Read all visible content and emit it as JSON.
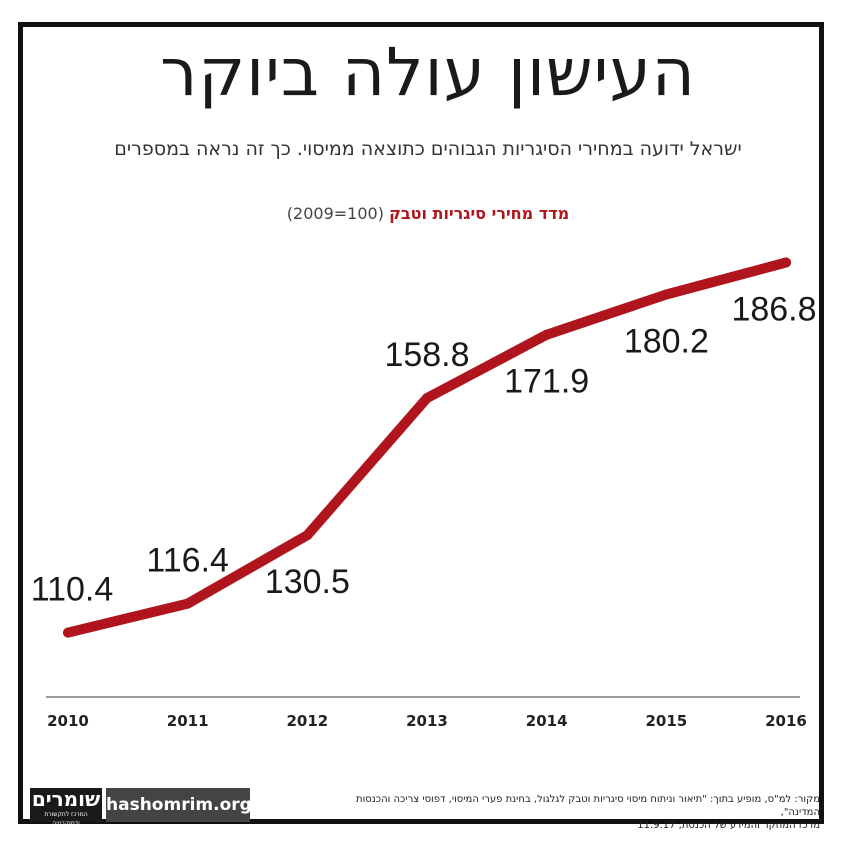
{
  "header": {
    "title": "העישון עולה ביוקר",
    "subtitle": "ישראל ידועה במחירי הסיגריות הגבוהים כתוצאה ממיסוי. כך זה נראה במספרים",
    "chart_title_main": "מדד מחירי סיגריות וטבק",
    "chart_title_note": "(100=2009)"
  },
  "chart_data": {
    "type": "line",
    "title": "מדד מחירי סיגריות וטבק (100=2009)",
    "categories": [
      "2010",
      "2011",
      "2012",
      "2013",
      "2014",
      "2015",
      "2016"
    ],
    "series": [
      {
        "values": [
          110.4,
          116.4,
          130.5,
          158.8,
          171.9,
          180.2,
          186.8
        ]
      }
    ],
    "data_labels": [
      "110.4",
      "116.4",
      "130.5",
      "158.8",
      "171.9",
      "180.2",
      "186.8"
    ],
    "ylim": [
      100,
      190
    ],
    "grid": false,
    "line_color": "#b0141c",
    "axis_color": "#333333"
  },
  "footer": {
    "logo_text": "שומרים",
    "logo_subtext": "המרכז לתקשורת ודמוקרטיה",
    "site": "hashomrim.org",
    "source_line1": "מקור: למ\"ס, מופיע בתוך: \"תיאור וניתוח מיסוי סיגריות וטבק לגלגול, בחינת פערי המיסוי, דפוסי צריכה והכנסות המדינה\",",
    "source_line2": "מרכז המחקר והמידע של הכנסת, 11.9.17"
  }
}
